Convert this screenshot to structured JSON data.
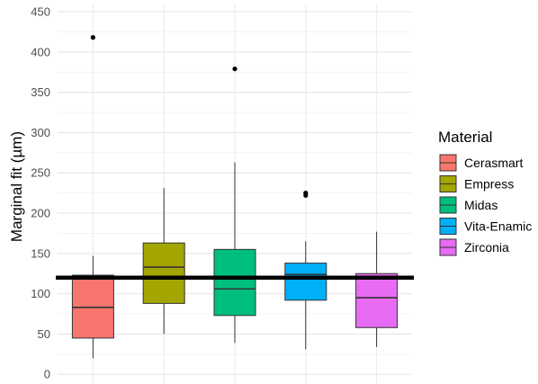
{
  "chart_data": {
    "type": "boxplot",
    "title": "",
    "xlabel": "",
    "ylabel": "Marginal fit (µm)",
    "ylim": [
      -12,
      460
    ],
    "yticks": [
      0,
      50,
      100,
      150,
      200,
      250,
      300,
      350,
      400,
      450
    ],
    "grid": true,
    "x_tick_labels": false,
    "reference_line": {
      "y": 120,
      "color": "#000000"
    },
    "legend": {
      "title": "Material",
      "placement": "right"
    },
    "series": [
      {
        "name": "Cerasmart",
        "color": "#F8766D",
        "whisker_low": 20,
        "q1": 45,
        "median": 83,
        "q3": 123,
        "whisker_high": 147,
        "outliers": [
          418
        ]
      },
      {
        "name": "Empress",
        "color": "#A3A500",
        "whisker_low": 50,
        "q1": 88,
        "median": 133,
        "q3": 163,
        "whisker_high": 231,
        "outliers": []
      },
      {
        "name": "Midas",
        "color": "#00BF7D",
        "whisker_low": 39,
        "q1": 73,
        "median": 106,
        "q3": 155,
        "whisker_high": 263,
        "outliers": [
          379
        ]
      },
      {
        "name": "Vita-Enamic",
        "color": "#00B0F6",
        "whisker_low": 31,
        "q1": 92,
        "median": 124,
        "q3": 138,
        "whisker_high": 165,
        "outliers": [
          222,
          225
        ]
      },
      {
        "name": "Zirconia",
        "color": "#E76BF3",
        "whisker_low": 34,
        "q1": 58,
        "median": 95,
        "q3": 125,
        "whisker_high": 177,
        "outliers": []
      }
    ]
  }
}
